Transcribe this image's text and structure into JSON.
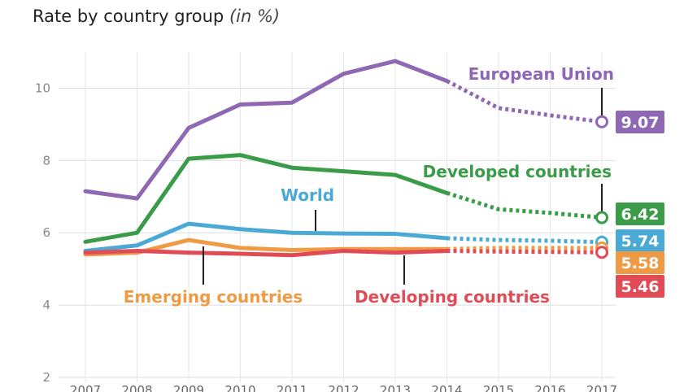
{
  "subtitle": {
    "main": "Rate by country group",
    "unit": "(in %)"
  },
  "chart_data": {
    "type": "line",
    "title": "Rate by country group (in %)",
    "xlabel": "",
    "ylabel": "",
    "x": [
      2007,
      2008,
      2009,
      2010,
      2011,
      2012,
      2013,
      2014,
      2015,
      2016,
      2017
    ],
    "xlim": [
      2007,
      2017
    ],
    "ylim": [
      2,
      11
    ],
    "yticks": [
      2,
      4,
      6,
      8,
      10
    ],
    "grid": true,
    "projection_start": 2014,
    "series": [
      {
        "name": "European Union",
        "color": "#8f68b4",
        "values": [
          7.15,
          6.95,
          8.9,
          9.55,
          9.6,
          10.4,
          10.75,
          10.2,
          9.45,
          9.25,
          9.07
        ],
        "end_label": "9.07"
      },
      {
        "name": "Developed countries",
        "color": "#3a9b48",
        "values": [
          5.75,
          6.0,
          8.05,
          8.15,
          7.8,
          7.7,
          7.6,
          7.1,
          6.65,
          6.55,
          6.42
        ],
        "end_label": "6.42"
      },
      {
        "name": "World",
        "color": "#4aa9d5",
        "values": [
          5.5,
          5.65,
          6.25,
          6.1,
          6.0,
          5.98,
          5.97,
          5.85,
          5.8,
          5.78,
          5.74
        ],
        "end_label": "5.74"
      },
      {
        "name": "Emerging countries",
        "color": "#ef9a45",
        "values": [
          5.4,
          5.45,
          5.8,
          5.58,
          5.52,
          5.55,
          5.55,
          5.55,
          5.58,
          5.58,
          5.58
        ],
        "end_label": "5.58"
      },
      {
        "name": "Developing countries",
        "color": "#e04b55",
        "values": [
          5.45,
          5.5,
          5.45,
          5.42,
          5.38,
          5.5,
          5.45,
          5.5,
          5.48,
          5.47,
          5.46
        ],
        "end_label": "5.46"
      }
    ]
  }
}
